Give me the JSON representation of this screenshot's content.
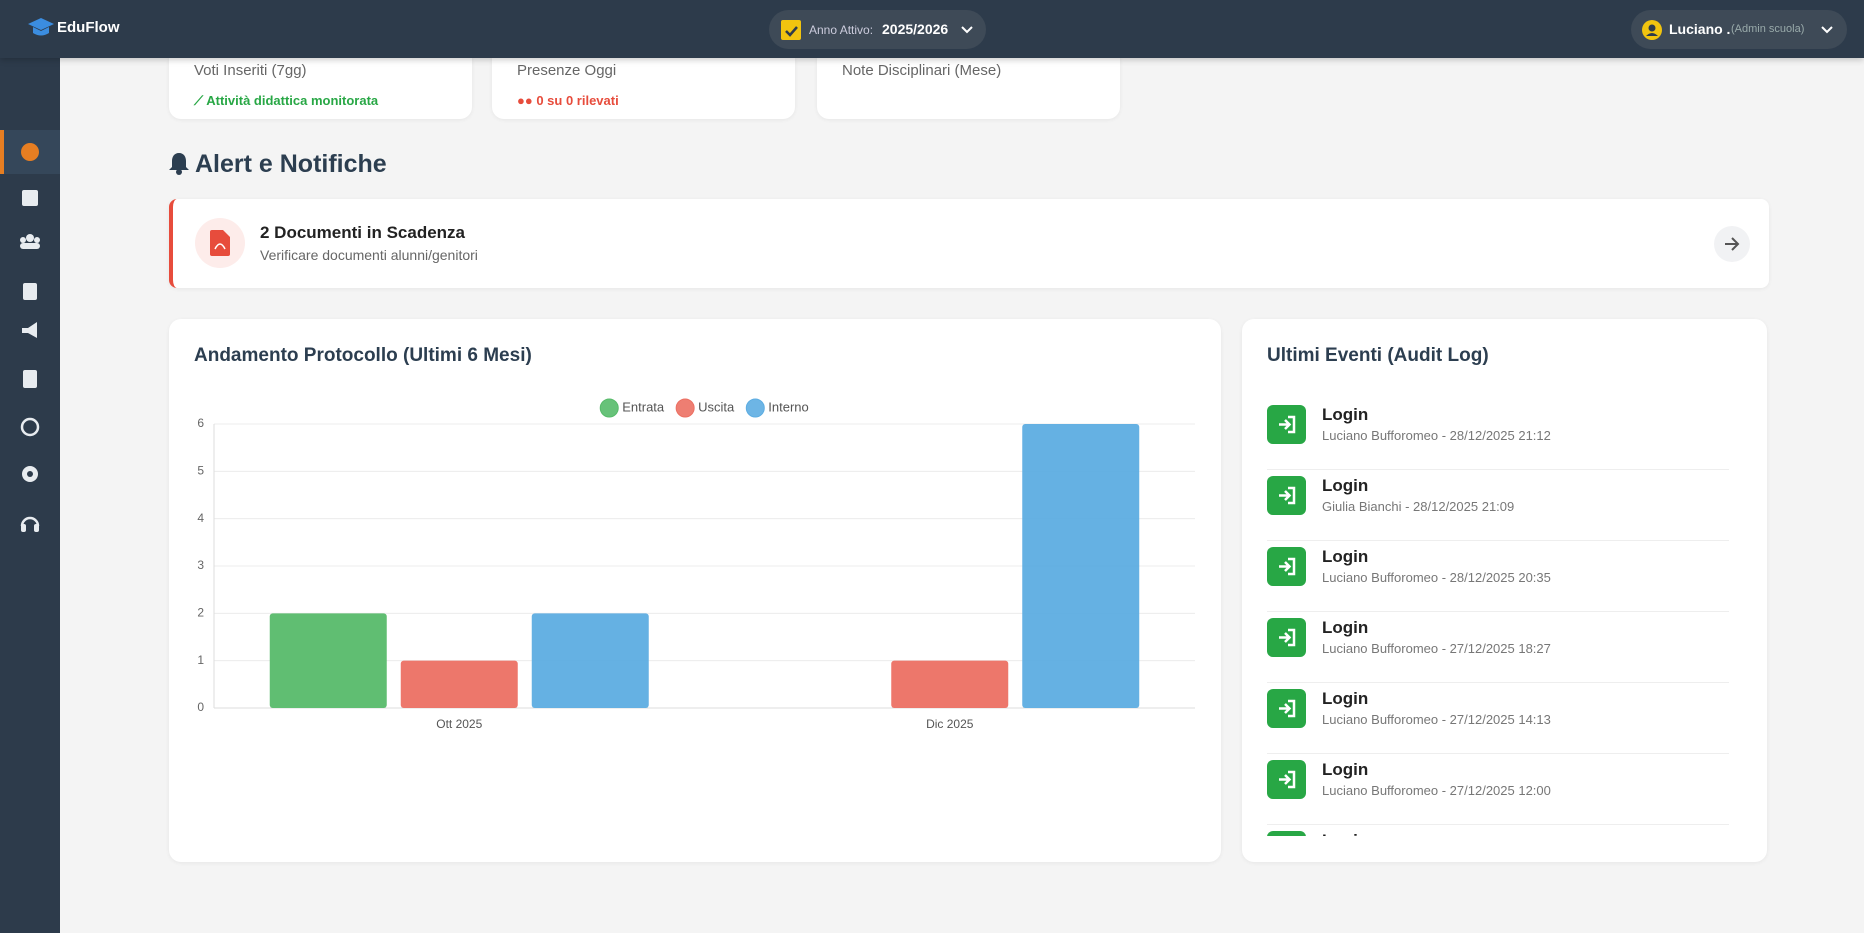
{
  "header": {
    "brand": "EduFlow",
    "year_label": "Anno Attivo:",
    "year": "2025/2026",
    "user": "Luciano .",
    "role": "(Admin scuola)"
  },
  "stats": [
    {
      "label": "Voti Inseriti (7gg)",
      "note": "Attività didattica monitorata"
    },
    {
      "label": "Presenze Oggi",
      "note": "0 su 0 rilevati"
    },
    {
      "label": "Note Disciplinari (Mese)"
    }
  ],
  "alerts": {
    "title": "Alert e Notifiche",
    "items": [
      {
        "title": "2 Documenti in Scadenza",
        "text": "Verificare documenti alunni/genitori"
      }
    ]
  },
  "chart_data": {
    "type": "bar",
    "title": "Andamento Protocollo (Ultimi 6 Mesi)",
    "categories": [
      "Ott 2025",
      "Dic 2025"
    ],
    "series": [
      {
        "name": "Entrata",
        "color": "#57bb6a",
        "values": [
          2,
          0
        ]
      },
      {
        "name": "Uscita",
        "color": "#ec7063",
        "values": [
          1,
          1
        ]
      },
      {
        "name": "Interno",
        "color": "#5dade2",
        "values": [
          2,
          6
        ]
      }
    ],
    "ylim": [
      0,
      6
    ],
    "yticks": [
      0,
      1,
      2,
      3,
      4,
      5,
      6
    ],
    "grid": true
  },
  "audit": {
    "title": "Ultimi Eventi (Audit Log)",
    "events": [
      {
        "action": "Login",
        "detail": "Luciano Bufforomeo - 28/12/2025 21:12"
      },
      {
        "action": "Login",
        "detail": "Giulia Bianchi - 28/12/2025 21:09"
      },
      {
        "action": "Login",
        "detail": "Luciano Bufforomeo - 28/12/2025 20:35"
      },
      {
        "action": "Login",
        "detail": "Luciano Bufforomeo - 27/12/2025 18:27"
      },
      {
        "action": "Login",
        "detail": "Luciano Bufforomeo - 27/12/2025 14:13"
      },
      {
        "action": "Login",
        "detail": "Luciano Bufforomeo - 27/12/2025 12:00"
      },
      {
        "action": "Login"
      }
    ]
  }
}
